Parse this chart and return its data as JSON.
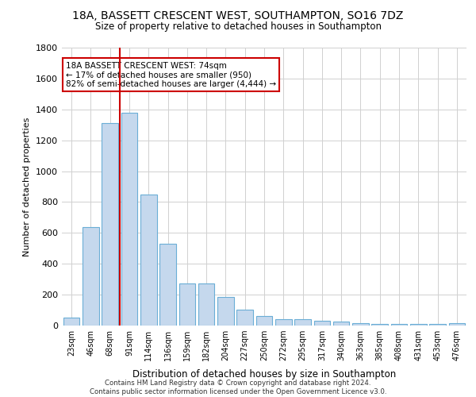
{
  "title_line1": "18A, BASSETT CRESCENT WEST, SOUTHAMPTON, SO16 7DZ",
  "title_line2": "Size of property relative to detached houses in Southampton",
  "xlabel": "Distribution of detached houses by size in Southampton",
  "ylabel": "Number of detached properties",
  "bar_color": "#c5d8ed",
  "bar_edge_color": "#6aaed6",
  "grid_color": "#d0d0d0",
  "background_color": "#ffffff",
  "categories": [
    "23sqm",
    "46sqm",
    "68sqm",
    "91sqm",
    "114sqm",
    "136sqm",
    "159sqm",
    "182sqm",
    "204sqm",
    "227sqm",
    "250sqm",
    "272sqm",
    "295sqm",
    "317sqm",
    "340sqm",
    "363sqm",
    "385sqm",
    "408sqm",
    "431sqm",
    "453sqm",
    "476sqm"
  ],
  "values": [
    50,
    640,
    1310,
    1380,
    850,
    530,
    275,
    275,
    185,
    105,
    60,
    40,
    40,
    30,
    25,
    15,
    10,
    10,
    10,
    10,
    15
  ],
  "vline_x_idx": 2,
  "vline_color": "#cc0000",
  "annotation_title": "18A BASSETT CRESCENT WEST: 74sqm",
  "annotation_line1": "← 17% of detached houses are smaller (950)",
  "annotation_line2": "82% of semi-detached houses are larger (4,444) →",
  "annotation_box_color": "#cc0000",
  "footer_line1": "Contains HM Land Registry data © Crown copyright and database right 2024.",
  "footer_line2": "Contains public sector information licensed under the Open Government Licence v3.0.",
  "ylim": [
    0,
    1800
  ],
  "yticks": [
    0,
    200,
    400,
    600,
    800,
    1000,
    1200,
    1400,
    1600,
    1800
  ]
}
